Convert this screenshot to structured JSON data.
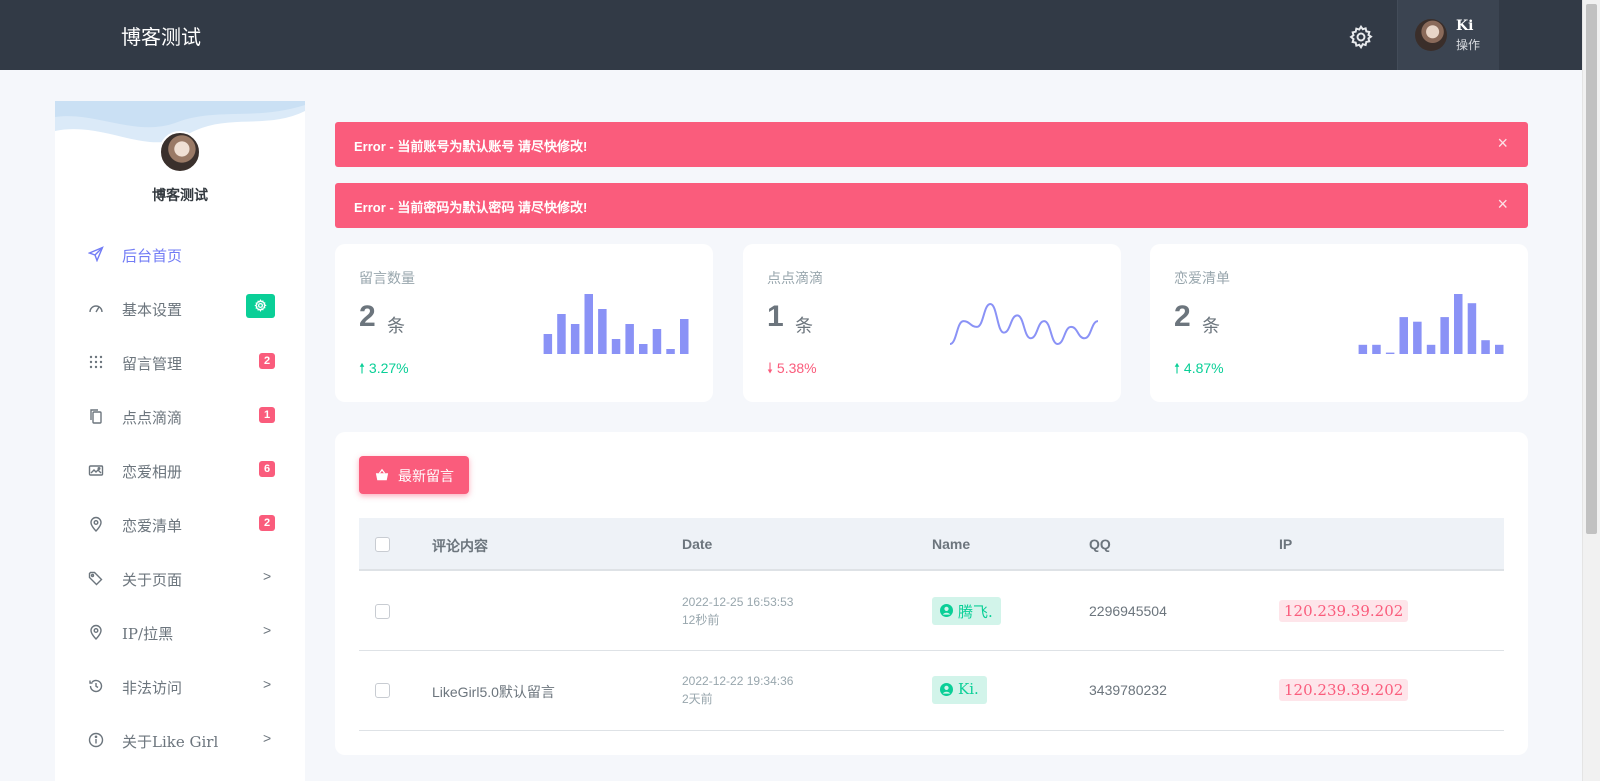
{
  "header": {
    "brand": "博客测试",
    "user": {
      "name": "Ki",
      "role": "操作"
    }
  },
  "sidebar": {
    "profile_name": "博客测试",
    "items": [
      {
        "label": "后台首页",
        "icon": "send-icon",
        "active": true
      },
      {
        "label": "基本设置",
        "icon": "speedometer-icon",
        "badge_icon": "gear-icon"
      },
      {
        "label": "留言管理",
        "icon": "grid-dots-icon",
        "badge": "2"
      },
      {
        "label": "点点滴滴",
        "icon": "copy-icon",
        "badge": "1"
      },
      {
        "label": "恋爱相册",
        "icon": "album-icon",
        "badge": "6"
      },
      {
        "label": "恋爱清单",
        "icon": "map-pin-icon",
        "badge": "2"
      },
      {
        "label": "关于页面",
        "icon": "tag-icon",
        "chevron": ">"
      },
      {
        "label": "IP/拉黑",
        "icon": "map-pin-icon",
        "chevron": ">"
      },
      {
        "label": "非法访问",
        "icon": "history-icon",
        "chevron": ">"
      },
      {
        "label": "关于Like Girl",
        "icon": "info-icon",
        "chevron": ">"
      }
    ]
  },
  "alerts": [
    {
      "text": "Error - 当前账号为默认账号 请尽快修改!",
      "close": "×"
    },
    {
      "text": "Error - 当前密码为默认密码 请尽快修改!",
      "close": "×"
    }
  ],
  "stats": [
    {
      "title": "留言数量",
      "value": "2",
      "unit": "条",
      "change": "3.27%",
      "direction": "up",
      "spark_type": "bar",
      "spark": [
        4,
        8,
        6,
        12,
        9,
        3,
        6,
        2,
        5,
        1,
        7
      ]
    },
    {
      "title": "点点滴滴",
      "value": "1",
      "unit": "条",
      "change": "5.38%",
      "direction": "down",
      "spark_type": "line",
      "spark": [
        2,
        6,
        5,
        9,
        4,
        7,
        3,
        6,
        2,
        5,
        3,
        6
      ]
    },
    {
      "title": "恋爱清单",
      "value": "2",
      "unit": "条",
      "change": "4.87%",
      "direction": "up",
      "spark_type": "bar",
      "spark": [
        2,
        2,
        0.3,
        8,
        7,
        2,
        8,
        13,
        11,
        3,
        2
      ]
    }
  ],
  "colors": {
    "primary": "#727cf5",
    "danger": "#fa5c7c",
    "success": "#0acf97",
    "spark": "#8a92f6"
  },
  "table": {
    "button_label": "最新留言",
    "button_icon": "basket-icon",
    "columns": [
      "评论内容",
      "Date",
      "Name",
      "QQ",
      "IP"
    ],
    "rows": [
      {
        "content": "",
        "date": "2022-12-25 16:53:53",
        "ago": "12秒前",
        "name": "腾飞.",
        "qq": "2296945504",
        "ip": "120.239.39.202"
      },
      {
        "content": "LikeGirl5.0默认留言",
        "date": "2022-12-22 19:34:36",
        "ago": "2天前",
        "name": "Ki.",
        "qq": "3439780232",
        "ip": "120.239.39.202"
      }
    ]
  }
}
